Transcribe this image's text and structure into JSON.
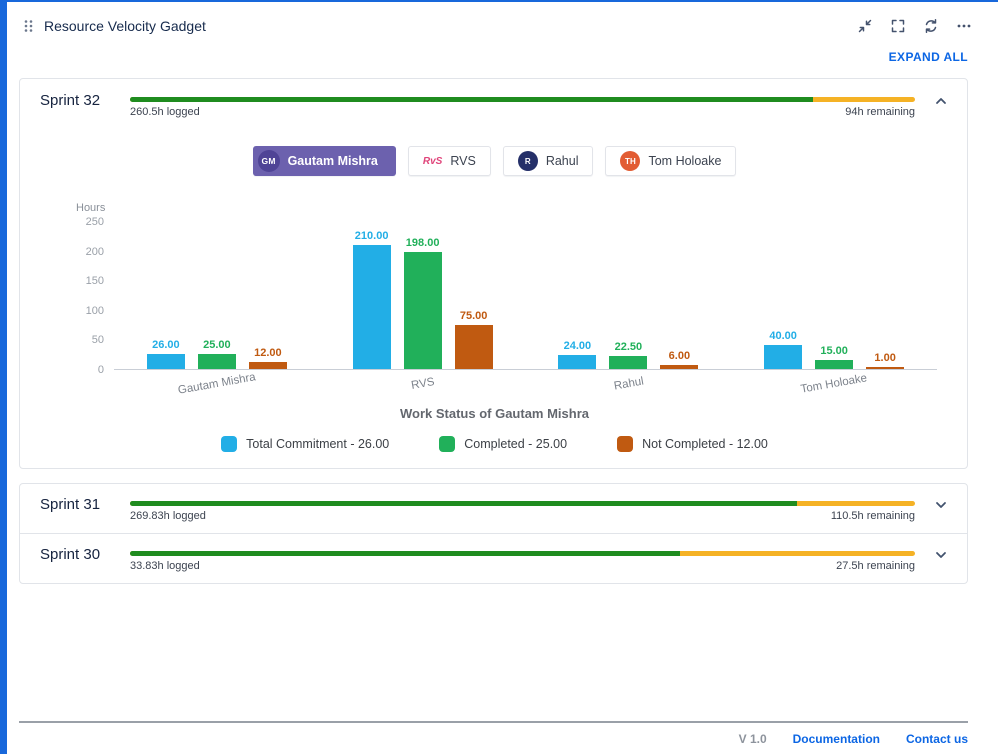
{
  "colors": {
    "accent_blue": "#1868db",
    "link_blue": "#0c66e4",
    "progress_green": "#1f8c1f",
    "progress_yellow": "#f5b225",
    "tab_selected_bg": "#6c61ae",
    "tab_selected_avatar_bg": "#4f4496",
    "rahul_avatar_bg": "#253069",
    "tom_avatar_bg": "#e25c33",
    "rvs_icon_color": "#e0447a"
  },
  "header": {
    "title": "Resource Velocity Gadget"
  },
  "actions": {
    "expand_all": "EXPAND ALL"
  },
  "sprints": [
    {
      "name": "Sprint 32",
      "logged": "260.5h logged",
      "remaining": "94h remaining",
      "progress_pct": 87
    },
    {
      "name": "Sprint 31",
      "logged": "269.83h logged",
      "remaining": "110.5h remaining",
      "progress_pct": 85
    },
    {
      "name": "Sprint 30",
      "logged": "33.83h logged",
      "remaining": "27.5h remaining",
      "progress_pct": 70
    }
  ],
  "tabs": [
    {
      "label": "Gautam Mishra",
      "avatar": "GM",
      "selected": true
    },
    {
      "label": "RVS",
      "avatar": "RvS",
      "selected": false
    },
    {
      "label": "Rahul",
      "avatar": "R",
      "selected": false
    },
    {
      "label": "Tom Holoake",
      "avatar": "TH",
      "selected": false
    }
  ],
  "chart_data": {
    "type": "bar",
    "categories": [
      "Gautam Mishra",
      "RVS",
      "Rahul",
      "Tom Holoake"
    ],
    "series": [
      {
        "name": "Total Commitment",
        "color": "#22aee6",
        "values": [
          26,
          210,
          24,
          40
        ]
      },
      {
        "name": "Completed",
        "color": "#21b05a",
        "values": [
          25,
          198,
          22.5,
          15
        ]
      },
      {
        "name": "Not Completed",
        "color": "#c05a11",
        "values": [
          12,
          75,
          6,
          1
        ]
      }
    ],
    "ylabel": "Hours",
    "xlabel": "",
    "yticks": [
      0,
      50,
      100,
      150,
      200,
      250
    ],
    "ylim": [
      0,
      250
    ],
    "grid": false,
    "legend_position": "bottom",
    "title": "Work Status of Gautam Mishra",
    "legend": [
      "Total Commitment - 26.00",
      "Completed  - 25.00",
      "Not Completed  - 12.00"
    ]
  },
  "footer": {
    "version": "V 1.0",
    "documentation": "Documentation",
    "contact": "Contact us"
  }
}
